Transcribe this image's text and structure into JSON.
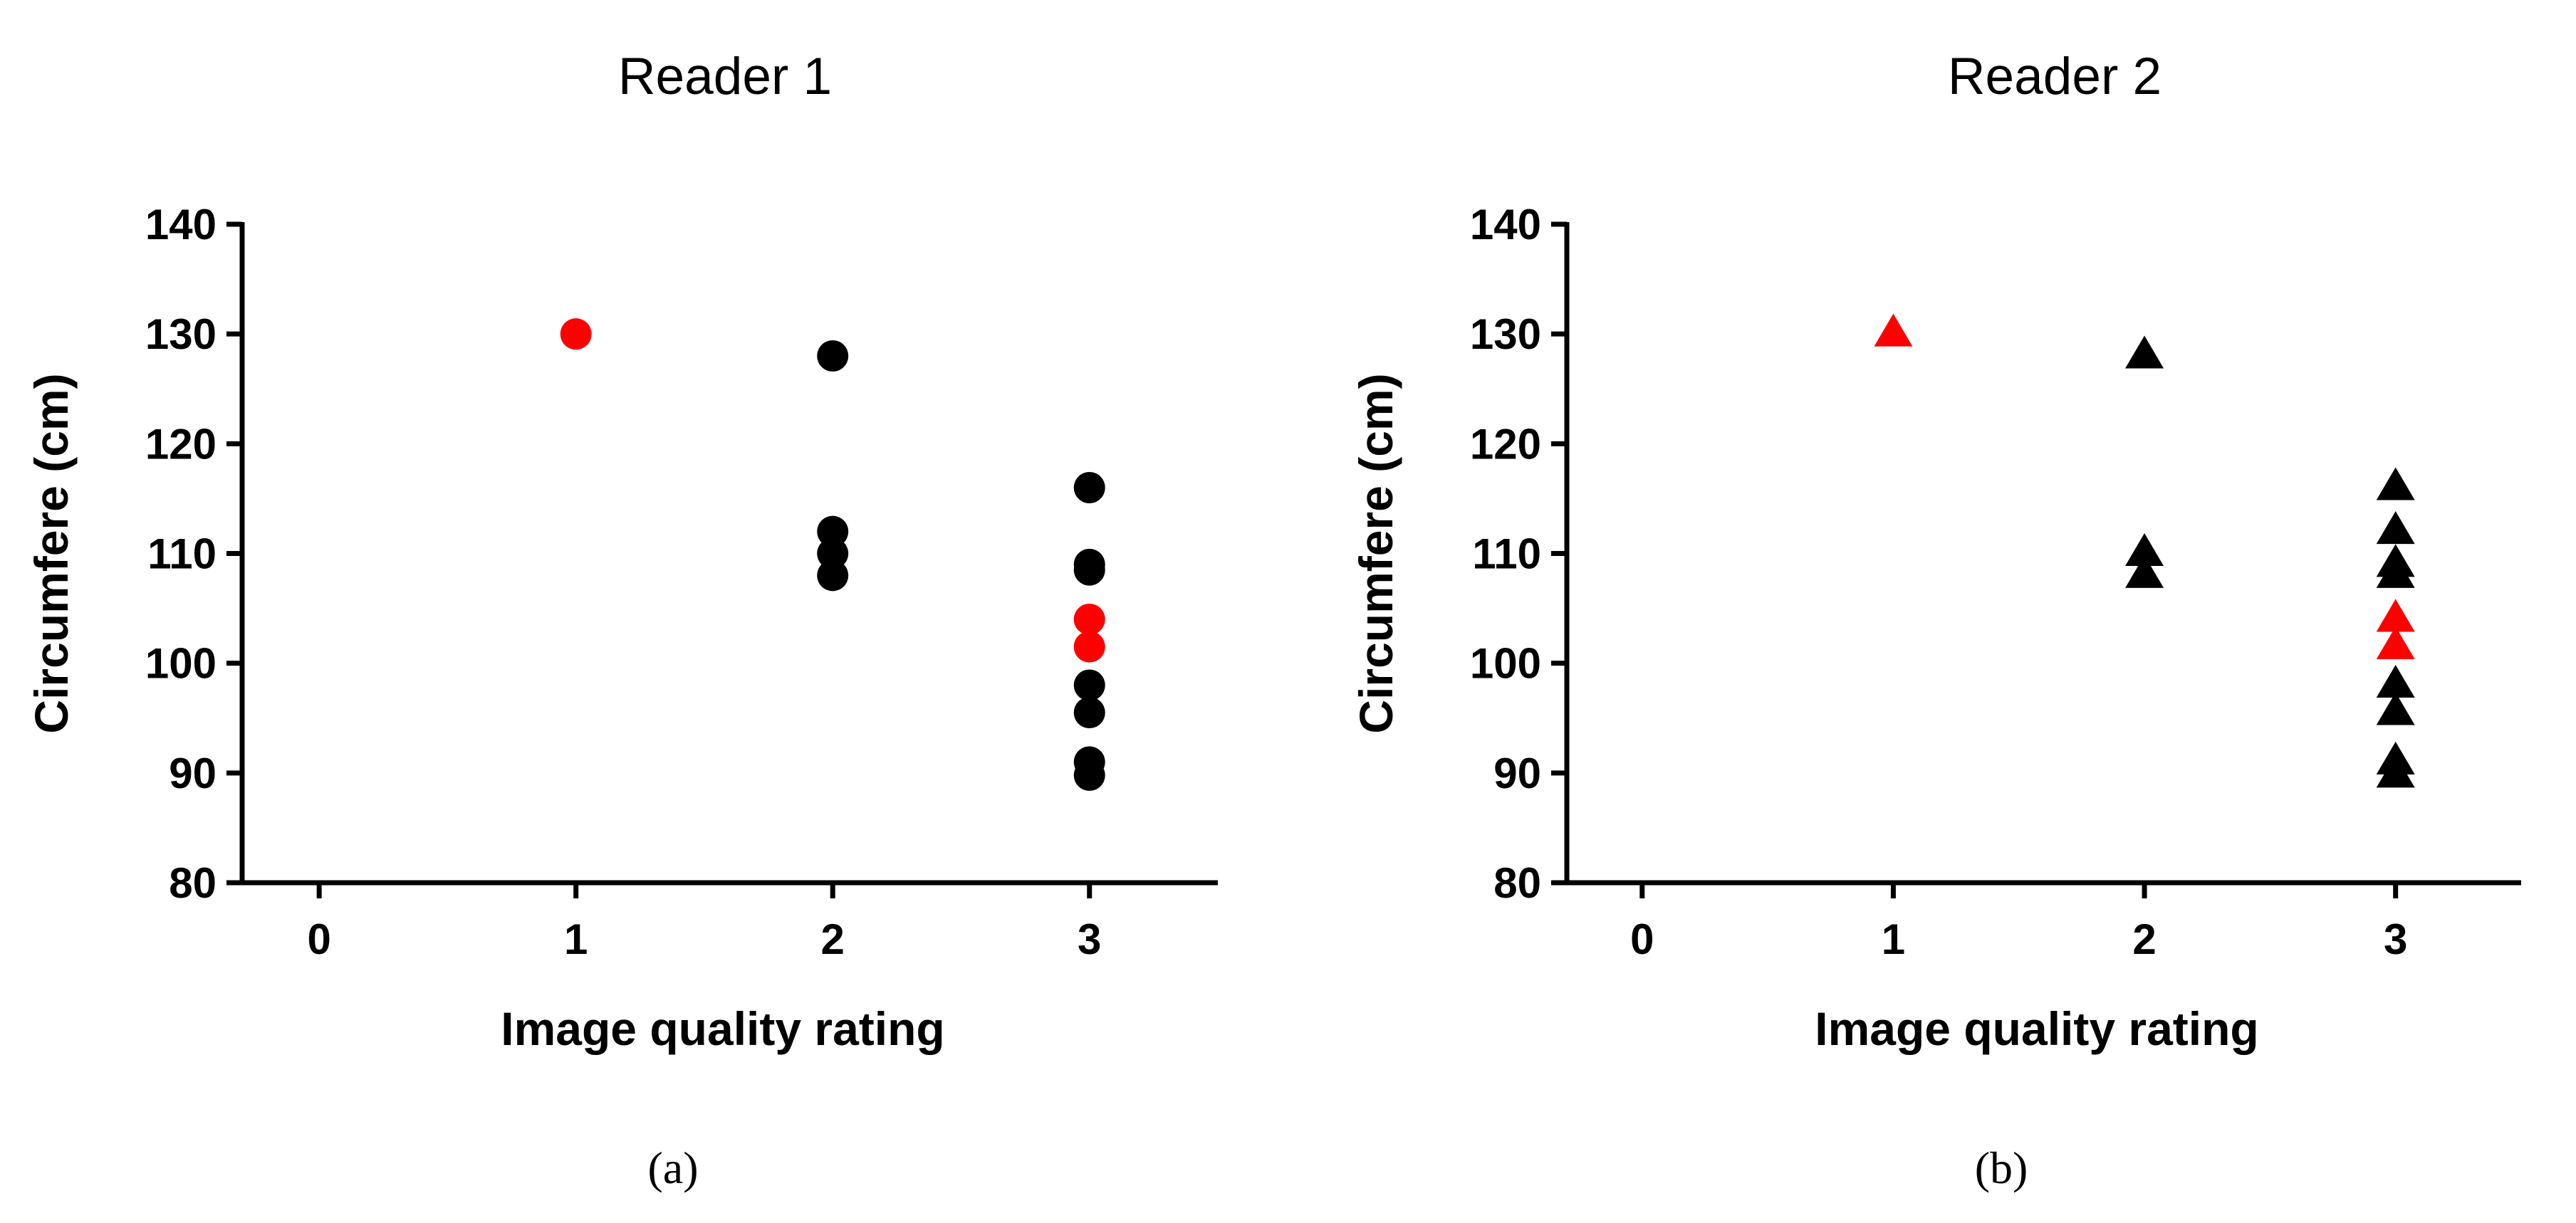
{
  "chart_data": [
    {
      "type": "scatter",
      "title": "Reader 1",
      "xlabel": "Image quality rating",
      "ylabel": "Circumfere (cm)",
      "panel_label": "(a)",
      "marker": "circle",
      "xlim": [
        -0.3,
        3.5
      ],
      "ylim": [
        80,
        140
      ],
      "xticks": [
        0,
        1,
        2,
        3
      ],
      "yticks": [
        80,
        90,
        100,
        110,
        120,
        130,
        140
      ],
      "grid": false,
      "series": [
        {
          "color": "#000000",
          "points": [
            [
              2,
              128
            ],
            [
              2,
              112
            ],
            [
              2,
              110
            ],
            [
              2,
              108
            ],
            [
              3,
              116
            ],
            [
              3,
              109
            ],
            [
              3,
              108.5
            ],
            [
              3,
              98
            ],
            [
              3,
              95.5
            ],
            [
              3,
              91
            ],
            [
              3,
              89.8
            ]
          ]
        },
        {
          "color": "#ff0000",
          "points": [
            [
              1,
              130
            ],
            [
              3,
              104
            ],
            [
              3,
              101.5
            ]
          ]
        }
      ]
    },
    {
      "type": "scatter",
      "title": "Reader 2",
      "xlabel": "Image quality rating",
      "ylabel": "Circumfere (cm)",
      "panel_label": "(b)",
      "marker": "triangle",
      "xlim": [
        -0.3,
        3.5
      ],
      "ylim": [
        80,
        140
      ],
      "xticks": [
        0,
        1,
        2,
        3
      ],
      "yticks": [
        80,
        90,
        100,
        110,
        120,
        130,
        140
      ],
      "grid": false,
      "series": [
        {
          "color": "#000000",
          "points": [
            [
              2,
              128
            ],
            [
              2,
              110
            ],
            [
              2,
              108
            ],
            [
              3,
              116
            ],
            [
              3,
              112
            ],
            [
              3,
              109
            ],
            [
              3,
              108
            ],
            [
              3,
              98
            ],
            [
              3,
              95.5
            ],
            [
              3,
              91
            ],
            [
              3,
              89.8
            ]
          ]
        },
        {
          "color": "#ff0000",
          "points": [
            [
              1,
              130
            ],
            [
              3,
              104
            ],
            [
              3,
              101.5
            ]
          ]
        }
      ]
    }
  ]
}
